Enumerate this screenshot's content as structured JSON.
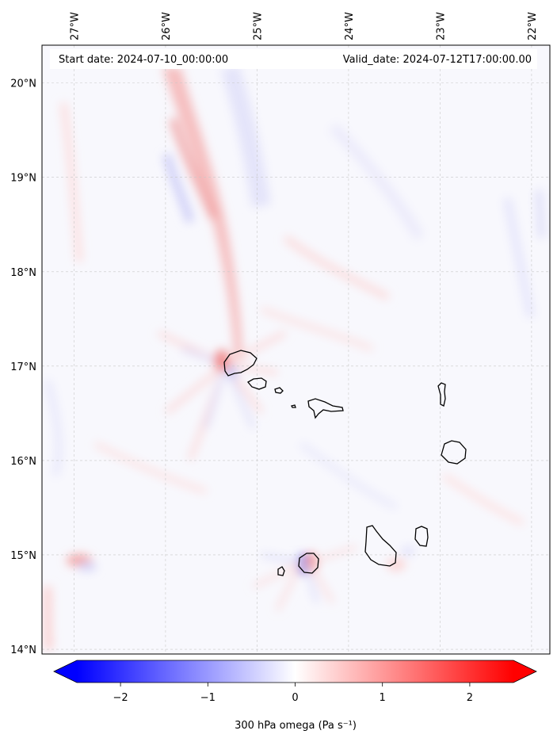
{
  "header": {
    "start_label": "Start date: 2024-07-10_00:00:00",
    "valid_label": "Valid_date: 2024-07-12T17:00:00.00"
  },
  "map": {
    "lon_ticks": [
      "27°W",
      "26°W",
      "25°W",
      "24°W",
      "23°W",
      "22°W"
    ],
    "lat_ticks": [
      "20°N",
      "19°N",
      "18°N",
      "17°N",
      "16°N",
      "15°N",
      "14°N"
    ],
    "lon_values": [
      -27,
      -26,
      -25,
      -24,
      -23,
      -22
    ],
    "lat_values": [
      20,
      19,
      18,
      17,
      16,
      15,
      14
    ],
    "lon_range": [
      -27.35,
      -21.8
    ],
    "lat_range": [
      13.95,
      20.4
    ],
    "gridlines": true
  },
  "colorbar": {
    "ticks": [
      "−2",
      "−1",
      "0",
      "1",
      "2"
    ],
    "tick_values": [
      -2,
      -1,
      0,
      1,
      2
    ],
    "range": [
      -2.5,
      2.5
    ],
    "label": "300 hPa omega (Pa s⁻¹)",
    "low_color": "#0000ff",
    "mid_color": "#ffffff",
    "high_color": "#ff0000"
  },
  "colors": {
    "coastline": "#000000",
    "background": "#f7f7fe"
  }
}
